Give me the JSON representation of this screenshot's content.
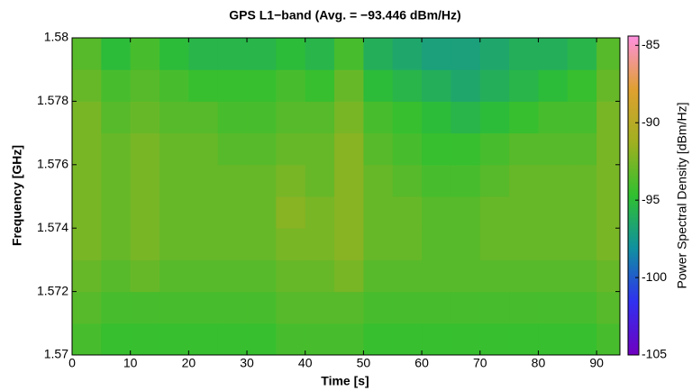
{
  "chart_data": {
    "type": "heatmap",
    "title": "GPS L1−band (Avg. = −93.446 dBm/Hz)",
    "x_label": "Time [s]",
    "y_label": "Frequency [GHz]",
    "colorbar_label": "Power Spectral Density [dBm/Hz]",
    "xbins": [
      0,
      5,
      10,
      15,
      20,
      25,
      30,
      35,
      40,
      45,
      50,
      55,
      60,
      65,
      70,
      75,
      80,
      85,
      90,
      94
    ],
    "ybins": [
      1.57,
      1.571,
      1.572,
      1.573,
      1.574,
      1.575,
      1.576,
      1.577,
      1.578,
      1.579,
      1.58
    ],
    "z": [
      [
        -94,
        -94.5,
        -94.5,
        -94.5,
        -94.5,
        -94.5,
        -94.5,
        -94,
        -94,
        -94,
        -94.5,
        -94.5,
        -94.5,
        -94.5,
        -94.5,
        -94.5,
        -94.5,
        -94.5,
        -94
      ],
      [
        -93.5,
        -94,
        -94,
        -94,
        -94,
        -94,
        -94,
        -93.5,
        -93.5,
        -93.5,
        -94,
        -94,
        -94,
        -94,
        -94,
        -94,
        -94,
        -94,
        -93.5
      ],
      [
        -93,
        -93.5,
        -93,
        -93.5,
        -93.5,
        -93.5,
        -93.5,
        -93,
        -93,
        -92.5,
        -93.5,
        -93.5,
        -93.5,
        -93.5,
        -93.5,
        -93.5,
        -93.5,
        -93.5,
        -93
      ],
      [
        -92.5,
        -93,
        -92.5,
        -93,
        -93,
        -93,
        -93,
        -92.5,
        -92.5,
        -92,
        -93,
        -93,
        -93.5,
        -93.5,
        -93,
        -93,
        -93,
        -93,
        -92.5
      ],
      [
        -92.5,
        -93,
        -92.5,
        -93,
        -93,
        -93,
        -93,
        -92,
        -92.5,
        -92,
        -93,
        -93,
        -93.5,
        -93.5,
        -93,
        -93,
        -93,
        -93,
        -92.5
      ],
      [
        -92.5,
        -93,
        -92.5,
        -93,
        -93,
        -93,
        -93,
        -92.5,
        -93,
        -92,
        -93,
        -93.5,
        -94,
        -94,
        -93.5,
        -93,
        -93,
        -93,
        -92.5
      ],
      [
        -92.5,
        -93,
        -92.5,
        -93,
        -93,
        -93.5,
        -93.5,
        -93,
        -93,
        -92,
        -93.5,
        -94,
        -94.5,
        -94.5,
        -94,
        -93.5,
        -93.5,
        -93.5,
        -92.5
      ],
      [
        -92.5,
        -93.5,
        -93,
        -93.5,
        -93.5,
        -94,
        -94,
        -93.5,
        -93.5,
        -92.5,
        -94,
        -94.5,
        -95,
        -95.5,
        -95,
        -94.5,
        -94,
        -94,
        -92.5
      ],
      [
        -93,
        -94,
        -93.5,
        -94,
        -94.5,
        -94.5,
        -94.5,
        -94,
        -94.5,
        -93,
        -95,
        -95.5,
        -96,
        -96.5,
        -96,
        -95.5,
        -95,
        -94.5,
        -93
      ],
      [
        -93.5,
        -95,
        -94,
        -95,
        -95.5,
        -95.5,
        -95.5,
        -95,
        -95.5,
        -94,
        -96,
        -96.5,
        -97,
        -97,
        -96.5,
        -96,
        -96,
        -95.5,
        -93.5
      ]
    ],
    "xlim": [
      0,
      94
    ],
    "xticks": [
      0,
      10,
      20,
      30,
      40,
      50,
      60,
      70,
      80,
      90
    ],
    "ylim": [
      1.57,
      1.58
    ],
    "yticks": [
      1.57,
      1.572,
      1.574,
      1.576,
      1.578,
      1.58
    ],
    "clim": [
      -105,
      -84.4
    ],
    "cticks": [
      -105,
      -100,
      -95,
      -90,
      -85
    ],
    "colormap": [
      "#7000c0",
      "#3030f0",
      "#1090a0",
      "#30c030",
      "#a0b020",
      "#e0a030",
      "#ff90e0"
    ]
  }
}
